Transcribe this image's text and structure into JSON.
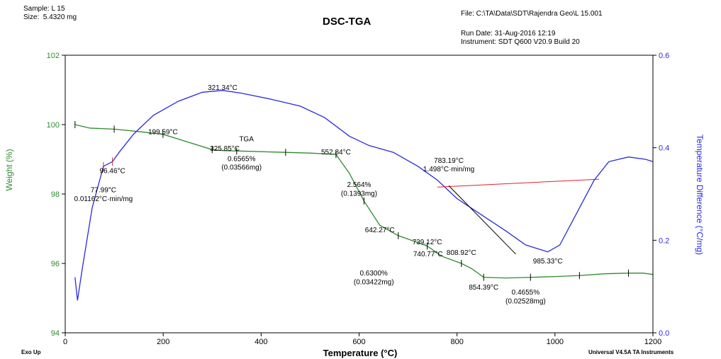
{
  "header": {
    "sample": "Sample: L 15",
    "size": "Size:  5.4320 mg",
    "title": "DSC-TGA",
    "file": "File: C:\\TA\\Data\\SDT\\Rajendra Geo\\L 15.001",
    "run_date": "Run Date: 31-Aug-2016 12:19",
    "instrument": "Instrument: SDT Q600 V20.9 Build 20"
  },
  "footer": {
    "exo": "Exo Up",
    "software": "Universal V4.5A TA Instruments"
  },
  "colors": {
    "tga": "#2e8b2e",
    "dsc": "#2a2ae0",
    "tangent": "#e02030",
    "axis": "#000000"
  },
  "chart_data": {
    "type": "line",
    "title": "DSC-TGA",
    "xlabel": "Temperature (°C)",
    "ylabel_left": "Weight (%)",
    "ylabel_right": "Temperature Difference (°C/mg)",
    "xlim": [
      0,
      1200
    ],
    "ylim_left": [
      94,
      102
    ],
    "ylim_right": [
      0.0,
      0.6
    ],
    "x_ticks": [
      0,
      200,
      400,
      600,
      800,
      1000,
      1200
    ],
    "x_tick_labels": [
      "0",
      "200",
      "400",
      "600",
      "800",
      "1000",
      "1200"
    ],
    "y_left_ticks": [
      94,
      96,
      98,
      100,
      102
    ],
    "y_left_tick_labels": [
      "94",
      "96",
      "98",
      "100",
      "102"
    ],
    "y_right_ticks": [
      0.0,
      0.2,
      0.4,
      0.6
    ],
    "y_right_tick_labels": [
      "0.0",
      "0.2",
      "0.4",
      "0.6"
    ],
    "series": [
      {
        "name": "TGA",
        "axis": "left",
        "points": [
          [
            20,
            100.0
          ],
          [
            50,
            99.9
          ],
          [
            100,
            99.87
          ],
          [
            150,
            99.8
          ],
          [
            199.59,
            99.72
          ],
          [
            250,
            99.5
          ],
          [
            300,
            99.28
          ],
          [
            325.85,
            99.25
          ],
          [
            350,
            99.24
          ],
          [
            400,
            99.22
          ],
          [
            450,
            99.2
          ],
          [
            500,
            99.18
          ],
          [
            552.84,
            99.14
          ],
          [
            580,
            98.6
          ],
          [
            610,
            97.8
          ],
          [
            642.27,
            97.1
          ],
          [
            680,
            96.8
          ],
          [
            710,
            96.65
          ],
          [
            739.12,
            96.5
          ],
          [
            770,
            96.2
          ],
          [
            808.92,
            96.0
          ],
          [
            830,
            95.85
          ],
          [
            854.39,
            95.6
          ],
          [
            900,
            95.58
          ],
          [
            950,
            95.6
          ],
          [
            1000,
            95.62
          ],
          [
            1050,
            95.65
          ],
          [
            1100,
            95.7
          ],
          [
            1150,
            95.72
          ],
          [
            1180,
            95.72
          ],
          [
            1200,
            95.68
          ]
        ]
      },
      {
        "name": "DSC",
        "axis": "right",
        "points": [
          [
            20,
            0.12
          ],
          [
            25,
            0.07
          ],
          [
            35,
            0.14
          ],
          [
            55,
            0.27
          ],
          [
            77.99,
            0.36
          ],
          [
            96.46,
            0.37
          ],
          [
            110,
            0.39
          ],
          [
            140,
            0.43
          ],
          [
            180,
            0.47
          ],
          [
            230,
            0.5
          ],
          [
            280,
            0.52
          ],
          [
            321.34,
            0.524
          ],
          [
            360,
            0.518
          ],
          [
            420,
            0.505
          ],
          [
            480,
            0.49
          ],
          [
            530,
            0.465
          ],
          [
            580,
            0.425
          ],
          [
            620,
            0.405
          ],
          [
            670,
            0.39
          ],
          [
            720,
            0.36
          ],
          [
            760,
            0.33
          ],
          [
            800,
            0.29
          ],
          [
            850,
            0.255
          ],
          [
            900,
            0.22
          ],
          [
            940,
            0.19
          ],
          [
            985.33,
            0.175
          ],
          [
            1010,
            0.19
          ],
          [
            1050,
            0.27
          ],
          [
            1080,
            0.33
          ],
          [
            1110,
            0.37
          ],
          [
            1150,
            0.38
          ],
          [
            1185,
            0.375
          ],
          [
            1200,
            0.37
          ]
        ]
      }
    ],
    "annotations": [
      {
        "text": "321.34°C",
        "x": 321.34,
        "y": 101.0,
        "axis": "left"
      },
      {
        "text": "199.59°C",
        "x": 199.59,
        "y": 99.72,
        "axis": "left"
      },
      {
        "text": "TGA",
        "x": 370,
        "y": 99.52,
        "axis": "left"
      },
      {
        "text": "552.84°C",
        "x": 552.84,
        "y": 99.14,
        "axis": "left"
      },
      {
        "text": "325.85°C",
        "x": 325.85,
        "y": 99.25,
        "axis": "left"
      },
      {
        "text": "0.6565%",
        "x": 360,
        "y": 98.95,
        "axis": "left"
      },
      {
        "text": "(0.03566mg)",
        "x": 360,
        "y": 98.7,
        "axis": "left"
      },
      {
        "text": "96.46°C",
        "x": 96.46,
        "y": 98.6,
        "axis": "left"
      },
      {
        "text": "77.99°C",
        "x": 77.99,
        "y": 98.05,
        "axis": "left"
      },
      {
        "text": "0.01162°C·min/mg",
        "x": 77.99,
        "y": 97.8,
        "axis": "left"
      },
      {
        "text": "2.564%",
        "x": 600,
        "y": 98.2,
        "axis": "left"
      },
      {
        "text": "(0.1393mg)",
        "x": 600,
        "y": 97.95,
        "axis": "left"
      },
      {
        "text": "783.19°C",
        "x": 783.19,
        "y": 98.9,
        "axis": "left"
      },
      {
        "text": "1.498°C·min/mg",
        "x": 783.19,
        "y": 98.65,
        "axis": "left"
      },
      {
        "text": "642.27°C",
        "x": 642.27,
        "y": 96.9,
        "axis": "left"
      },
      {
        "text": "739.12°C",
        "x": 739.12,
        "y": 96.55,
        "axis": "left"
      },
      {
        "text": "740.77°C",
        "x": 740.77,
        "y": 96.2,
        "axis": "left"
      },
      {
        "text": "808.92°C",
        "x": 808.92,
        "y": 96.25,
        "axis": "left"
      },
      {
        "text": "985.33°C",
        "x": 985.33,
        "y": 96.0,
        "axis": "left"
      },
      {
        "text": "0.6300%",
        "x": 630,
        "y": 95.65,
        "axis": "left"
      },
      {
        "text": "(0.03422mg)",
        "x": 630,
        "y": 95.4,
        "axis": "left"
      },
      {
        "text": "854.39°C",
        "x": 854.39,
        "y": 95.25,
        "axis": "left"
      },
      {
        "text": "0.4655%",
        "x": 940,
        "y": 95.1,
        "axis": "left"
      },
      {
        "text": "(0.02528mg)",
        "x": 940,
        "y": 94.85,
        "axis": "left"
      }
    ],
    "grid": false,
    "legend": "none"
  }
}
